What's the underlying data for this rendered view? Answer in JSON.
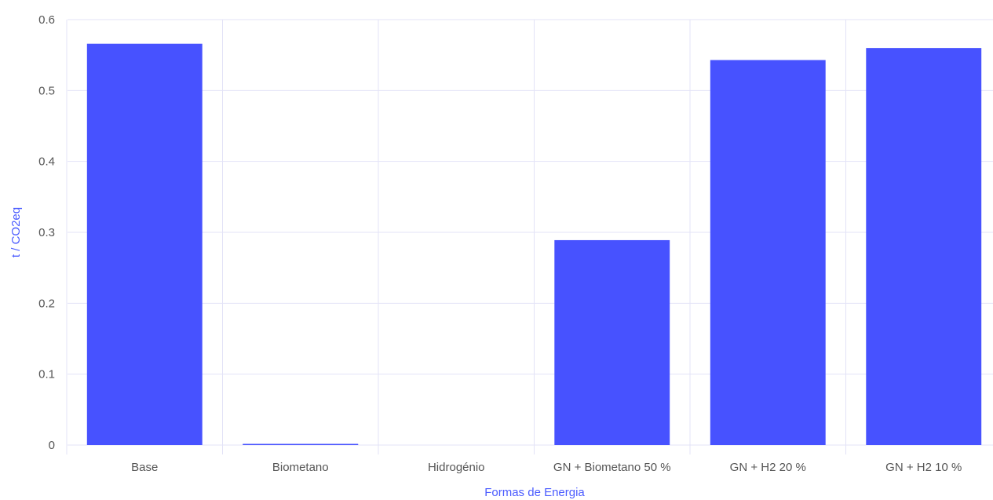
{
  "chart_data": {
    "type": "bar",
    "categories": [
      "Base",
      "Biometano",
      "Hidrogénio",
      "GN + Biometano 50 %",
      "GN + H2  20 %",
      "GN + H2  10 %"
    ],
    "values": [
      0.566,
      0.001,
      0,
      0.289,
      0.543,
      0.56
    ],
    "xlabel": "Formas de Energia",
    "ylabel": "t / CO2eq",
    "ylim": [
      0,
      0.6
    ],
    "yticks": [
      0,
      0.1,
      0.2,
      0.3,
      0.4,
      0.5,
      0.6
    ],
    "ytick_labels": [
      "0",
      "0.1",
      "0.2",
      "0.3",
      "0.4",
      "0.5",
      "0.6"
    ],
    "grid": true,
    "legend": "none",
    "colors": {
      "bar": "#4752ff",
      "grid": "#e3e3f7",
      "axis_title": "#4a5bff",
      "tick_text": "#555555"
    }
  }
}
